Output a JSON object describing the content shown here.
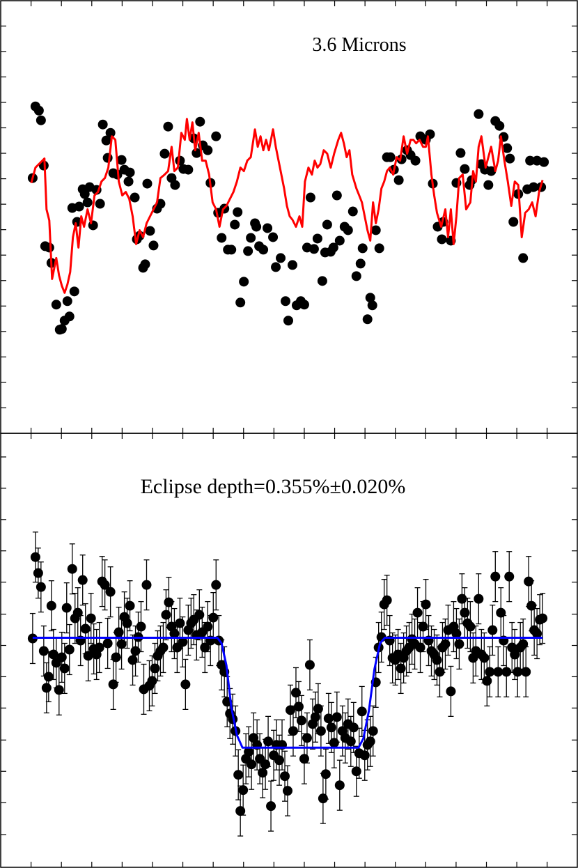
{
  "chart_data": [
    {
      "type": "scatter",
      "title": "3.6 Microns",
      "xlim": [
        0,
        830
      ],
      "ylim": [
        0,
        622
      ],
      "xticks": [
        43.7,
        87.4,
        131.1,
        174.8,
        218.5,
        262.2,
        305.9,
        349.6,
        393.3,
        437,
        480.7,
        524.4,
        568.1,
        611.8,
        655.5,
        699.2,
        742.9,
        786.6
      ],
      "yticks": [
        36.6,
        73.2,
        109.8,
        146.4,
        183,
        219.6,
        256.2,
        292.8,
        329.4,
        366,
        402.6,
        439.2,
        475.8,
        512.4,
        549,
        585.6
      ],
      "series": [
        {
          "type": "points",
          "color": "#000000",
          "x": [
            46,
            50,
            55,
            58,
            62,
            64,
            70,
            73,
            80,
            85,
            88,
            92,
            96,
            99,
            103,
            106,
            110,
            113,
            118,
            121,
            125,
            128,
            133,
            138,
            143,
            147,
            152,
            154,
            158,
            162,
            168,
            174,
            178,
            184,
            186,
            193,
            196,
            200,
            205,
            208,
            211,
            215,
            220,
            225,
            230,
            236,
            241,
            246,
            251,
            258,
            263,
            270,
            278,
            282,
            287,
            291,
            298,
            302,
            310,
            313,
            318,
            322,
            327,
            332,
            337,
            341,
            345,
            350,
            356,
            360,
            366,
            368,
            372,
            378,
            384,
            392,
            396,
            403,
            410,
            414,
            420,
            426,
            432,
            437,
            441,
            446,
            451,
            456,
            463,
            467,
            470,
            475,
            479,
            484,
            488,
            495,
            500,
            507,
            512,
            518,
            521,
            528,
            532,
            535,
            540,
            545,
            556,
            561,
            566,
            573,
            577,
            585,
            590,
            597,
            604,
            612,
            618,
            622,
            629,
            635,
            637,
            648,
            656,
            662,
            668,
            675,
            678,
            688,
            692,
            697,
            702,
            706,
            712,
            718,
            724,
            729,
            733,
            738,
            745,
            752,
            758,
            762,
            767,
            772,
            778,
            782
          ],
          "values": [
            367,
            470,
            464,
            450,
            385,
            269,
            267,
            245,
            185,
            149,
            150,
            162,
            190,
            168,
            324,
            204,
            304,
            326,
            351,
            344,
            332,
            354,
            299,
            350,
            330,
            444,
            421,
            396,
            432,
            374,
            372,
            393,
            379,
            362,
            375,
            339,
            279,
            284,
            238,
            243,
            359,
            291,
            270,
            323,
            330,
            402,
            441,
            367,
            357,
            392,
            380,
            379,
            424,
            403,
            448,
            414,
            407,
            360,
            427,
            317,
            281,
            323,
            264,
            264,
            300,
            318,
            188,
            218,
            262,
            281,
            302,
            297,
            269,
            264,
            295,
            282,
            239,
            252,
            190,
            162,
            242,
            184,
            190,
            185,
            267,
            339,
            265,
            280,
            219,
            260,
            300,
            261,
            267,
            342,
            277,
            297,
            292,
            319,
            226,
            244,
            266,
            164,
            195,
            184,
            292,
            266,
            397,
            397,
            379,
            364,
            394,
            407,
            400,
            392,
            427,
            422,
            430,
            359,
            297,
            279,
            304,
            277,
            360,
            403,
            380,
            357,
            364,
            459,
            387,
            379,
            357,
            377,
            449,
            442,
            426,
            410,
            395,
            304,
            344,
            252,
            351,
            392,
            354,
            392,
            354,
            390
          ]
        },
        {
          "type": "line",
          "color": "#ff0000",
          "x": [
            44,
            50,
            55,
            60,
            63,
            66,
            70,
            74,
            80,
            84,
            88,
            92,
            96,
            100,
            104,
            108,
            112,
            116,
            120,
            125,
            130,
            135,
            140,
            145,
            150,
            155,
            160,
            165,
            170,
            175,
            180,
            185,
            190,
            195,
            200,
            205,
            210,
            215,
            220,
            225,
            230,
            236,
            241,
            246,
            250,
            255,
            260,
            265,
            268,
            272,
            276,
            280,
            285,
            290,
            295,
            300,
            305,
            310,
            315,
            320,
            325,
            330,
            335,
            340,
            345,
            350,
            355,
            360,
            366,
            370,
            374,
            378,
            382,
            386,
            392,
            396,
            402,
            408,
            412,
            416,
            420,
            425,
            430,
            434,
            438,
            443,
            448,
            452,
            456,
            460,
            465,
            470,
            475,
            480,
            486,
            490,
            494,
            498,
            502,
            506,
            512,
            516,
            520,
            524,
            528,
            532,
            536,
            540,
            544,
            548,
            552,
            556,
            560,
            565,
            570,
            575,
            580,
            585,
            590,
            594,
            598,
            603,
            608,
            612,
            615,
            620,
            624,
            628,
            634,
            640,
            644,
            648,
            652,
            656,
            660,
            665,
            670,
            676,
            680,
            684,
            688,
            692,
            698,
            702,
            706,
            712,
            716,
            720,
            725,
            730,
            735,
            740,
            745,
            750,
            755,
            760,
            765,
            770,
            775,
            780
          ],
          "values": [
            360,
            382,
            387,
            392,
            395,
            322,
            306,
            222,
            252,
            227,
            212,
            202,
            214,
            232,
            282,
            302,
            267,
            312,
            297,
            322,
            302,
            342,
            347,
            362,
            367,
            382,
            427,
            422,
            362,
            342,
            347,
            337,
            312,
            272,
            292,
            282,
            302,
            312,
            322,
            332,
            367,
            372,
            377,
            412,
            377,
            382,
            432,
            422,
            452,
            422,
            447,
            407,
            432,
            392,
            392,
            372,
            332,
            322,
            297,
            322,
            327,
            337,
            347,
            362,
            382,
            377,
            392,
            397,
            437,
            412,
            427,
            407,
            422,
            407,
            437,
            412,
            382,
            352,
            327,
            312,
            307,
            297,
            312,
            297,
            362,
            382,
            372,
            392,
            382,
            387,
            407,
            402,
            382,
            402,
            422,
            432,
            417,
            397,
            407,
            372,
            352,
            342,
            332,
            312,
            292,
            277,
            332,
            302,
            322,
            352,
            362,
            377,
            382,
            372,
            397,
            392,
            427,
            402,
            422,
            422,
            417,
            422,
            412,
            412,
            427,
            372,
            342,
            317,
            297,
            322,
            282,
            322,
            272,
            312,
            367,
            372,
            322,
            332,
            377,
            362,
            412,
            427,
            382,
            397,
            412,
            377,
            392,
            427,
            392,
            362,
            327,
            362,
            357,
            282,
            317,
            322,
            332,
            312,
            347,
            364
          ]
        }
      ]
    },
    {
      "type": "scatter",
      "title": "Eclipse depth=0.355%±0.020%",
      "xlim": [
        0,
        830
      ],
      "ylim": [
        0,
        624
      ],
      "xticks": [
        43.7,
        87.4,
        131.1,
        174.8,
        218.5,
        262.2,
        305.9,
        349.6,
        393.3,
        437,
        480.7,
        524.4,
        568.1,
        611.8,
        655.5,
        699.2,
        742.9,
        786.6
      ],
      "yticks": [
        47,
        93,
        138,
        183,
        229,
        274,
        319,
        364,
        410,
        455,
        500,
        545,
        590
      ],
      "series": [
        {
          "type": "points",
          "color": "#000000",
          "error": 36,
          "x": [
            46,
            50,
            54,
            58,
            62,
            66,
            69,
            73,
            76,
            80,
            84,
            88,
            92,
            95,
            99,
            103,
            107,
            111,
            115,
            118,
            122,
            126,
            130,
            134,
            138,
            142,
            146,
            150,
            154,
            158,
            162,
            166,
            170,
            174,
            178,
            182,
            186,
            190,
            194,
            198,
            202,
            206,
            210,
            214,
            218,
            222,
            226,
            230,
            234,
            238,
            242,
            246,
            250,
            254,
            258,
            262,
            266,
            270,
            274,
            278,
            282,
            286,
            290,
            294,
            298,
            302,
            306,
            310,
            314,
            318,
            322,
            326,
            330,
            334,
            338,
            342,
            345,
            349,
            353,
            357,
            361,
            364,
            369,
            373,
            377,
            381,
            385,
            389,
            393,
            397,
            401,
            405,
            409,
            413,
            417,
            421,
            425,
            429,
            433,
            437,
            441,
            445,
            449,
            453,
            457,
            461,
            464,
            468,
            472,
            476,
            480,
            484,
            488,
            492,
            496,
            500,
            504,
            508,
            512,
            516,
            520,
            524,
            528,
            532,
            536,
            540,
            544,
            548,
            552,
            556,
            560,
            564,
            568,
            572,
            576,
            580,
            584,
            588,
            592,
            596,
            600,
            604,
            608,
            612,
            616,
            620,
            624,
            628,
            632,
            636,
            640,
            644,
            648,
            652,
            656,
            660,
            664,
            668,
            672,
            676,
            680,
            684,
            688,
            692,
            696,
            700,
            704,
            708,
            712,
            716,
            720,
            724,
            728,
            732,
            736,
            740,
            744,
            748,
            752,
            756,
            760,
            764,
            768,
            772,
            776,
            780
          ],
          "values": [
            329,
            446,
            423,
            403,
            311,
            258,
            274,
            376,
            306,
            294,
            255,
            302,
            286,
            373,
            313,
            429,
            358,
            366,
            326,
            413,
            343,
            304,
            358,
            314,
            306,
            316,
            411,
            406,
            322,
            396,
            263,
            302,
            338,
            321,
            360,
            351,
            376,
            298,
            311,
            331,
            346,
            256,
            406,
            261,
            268,
            286,
            304,
            311,
            316,
            363,
            381,
            346,
            336,
            316,
            351,
            324,
            263,
            341,
            351,
            356,
            334,
            363,
            338,
            316,
            346,
            326,
            359,
            406,
            326,
            291,
            281,
            238,
            221,
            213,
            196,
            133,
            81,
            111,
            156,
            166,
            148,
            186,
            176,
            156,
            136,
            148,
            181,
            88,
            161,
            176,
            154,
            176,
            131,
            110,
            226,
            196,
            251,
            231,
            211,
            156,
            186,
            291,
            206,
            216,
            228,
            196,
            99,
            134,
            214,
            201,
            179,
            216,
            118,
            196,
            186,
            206,
            181,
            201,
            138,
            164,
            224,
            161,
            176,
            181,
            196,
            266,
            316,
            331,
            378,
            384,
            326,
            301,
            298,
            306,
            286,
            301,
            311,
            316,
            328,
            321,
            366,
            316,
            346,
            378,
            326,
            311,
            306,
            298,
            281,
            316,
            321,
            341,
            253,
            346,
            336,
            321,
            386,
            366,
            351,
            346,
            301,
            311,
            386,
            306,
            301,
            268,
            281,
            341,
            418,
            281,
            366,
            326,
            281,
            418,
            316,
            306,
            281,
            316,
            321,
            281,
            411,
            376,
            341,
            336,
            356,
            358
          ]
        },
        {
          "type": "line",
          "color": "#0000ff",
          "x": [
            46,
            312,
            318,
            325,
            332,
            340,
            348,
            515,
            522,
            530,
            538,
            546,
            553,
            780
          ],
          "values": [
            330,
            330,
            322,
            290,
            230,
            190,
            172,
            172,
            185,
            225,
            285,
            322,
            330,
            330
          ]
        }
      ]
    }
  ]
}
